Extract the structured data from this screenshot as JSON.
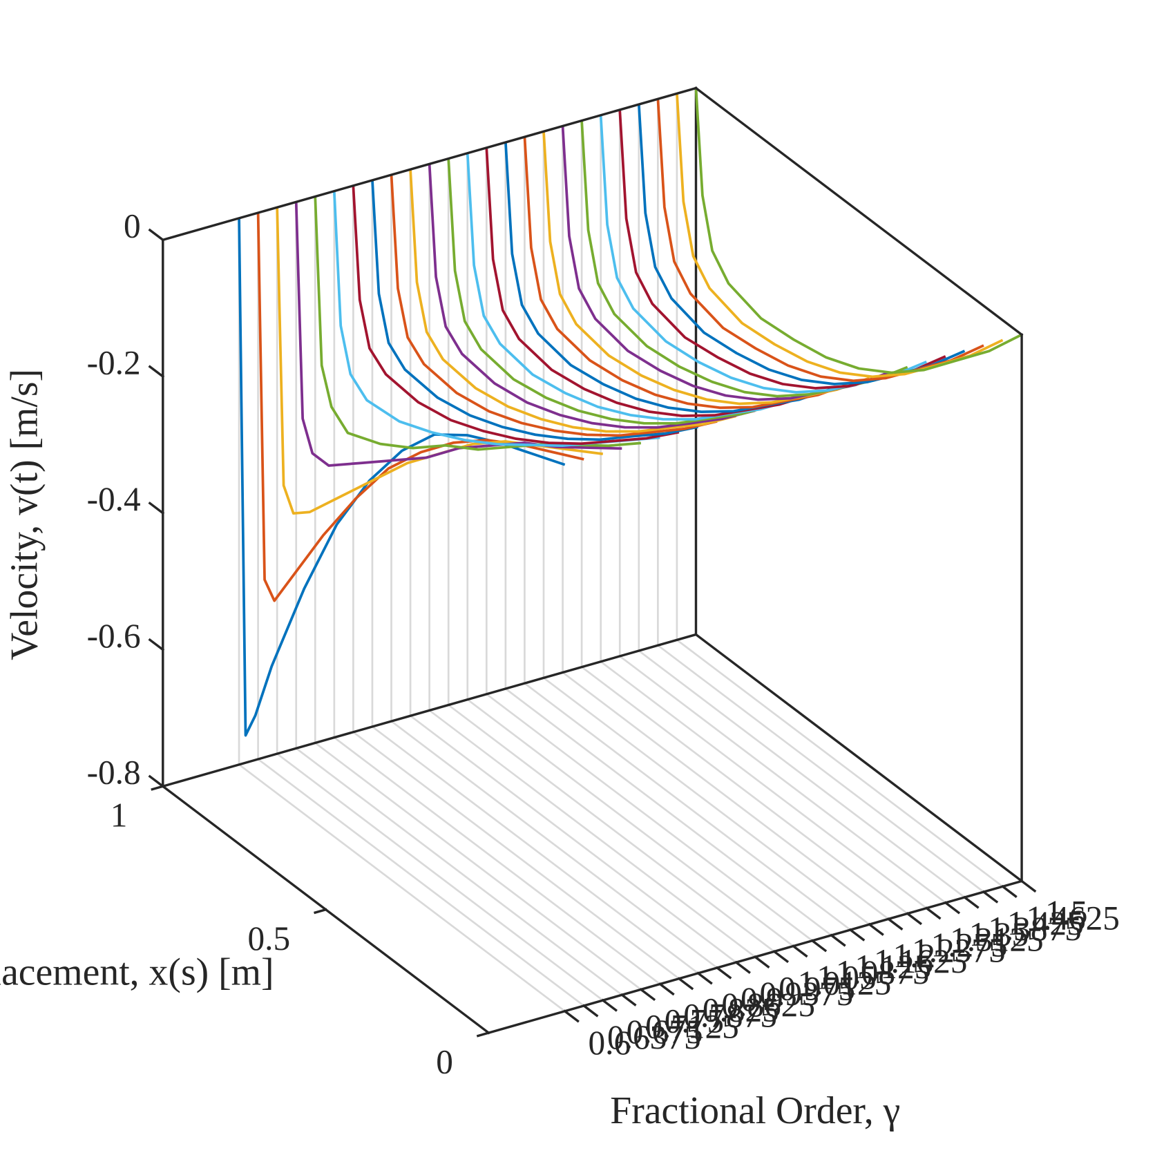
{
  "chart_data": {
    "type": "line3d",
    "xlabel": "Displacement, x(s) [m]",
    "ylabel": "Fractional Order, γ",
    "zlabel": "Velocity, v(t) [m/s]",
    "x": [
      0,
      0.1,
      0.2,
      0.3,
      0.4,
      0.5,
      0.6,
      0.7,
      0.8,
      0.9,
      0.95,
      0.98,
      1
    ],
    "xlim": [
      0,
      1
    ],
    "xticks": [
      0,
      0.5,
      1
    ],
    "ylim": [
      0.45,
      1.5
    ],
    "yticks": [
      0.6,
      0.6375,
      0.675,
      0.7125,
      0.75,
      0.7875,
      0.825,
      0.8625,
      0.9,
      0.9375,
      0.975,
      1.0125,
      1.05,
      1.0875,
      1.125,
      1.1625,
      1.2,
      1.2375,
      1.275,
      1.3125,
      1.35,
      1.3875,
      1.425,
      1.4625,
      1.5
    ],
    "zlim": [
      -0.8,
      0
    ],
    "zticks": [
      -0.8,
      -0.6,
      -0.4,
      -0.2,
      0
    ],
    "projection_color": "#d9d9d9",
    "series": [
      {
        "y": 0.6,
        "color": "#0072bd",
        "values": [
          0,
          -0.02,
          -0.04,
          -0.065,
          -0.1,
          -0.16,
          -0.24,
          -0.34,
          -0.47,
          -0.62,
          -0.71,
          -0.75,
          0
        ]
      },
      {
        "y": 0.6375,
        "color": "#d95319",
        "values": [
          0,
          -0.025,
          -0.05,
          -0.08,
          -0.12,
          -0.17,
          -0.23,
          -0.31,
          -0.4,
          -0.5,
          -0.55,
          -0.53,
          0
        ]
      },
      {
        "y": 0.675,
        "color": "#edb120",
        "values": [
          0,
          -0.03,
          -0.06,
          -0.09,
          -0.13,
          -0.18,
          -0.23,
          -0.29,
          -0.35,
          -0.41,
          -0.43,
          -0.4,
          0
        ]
      },
      {
        "y": 0.7125,
        "color": "#7e2f8e",
        "values": [
          0,
          -0.035,
          -0.07,
          -0.1,
          -0.14,
          -0.18,
          -0.23,
          -0.27,
          -0.31,
          -0.35,
          -0.35,
          -0.31,
          0
        ]
      },
      {
        "y": 0.75,
        "color": "#77ac30",
        "values": [
          0,
          -0.04,
          -0.075,
          -0.11,
          -0.15,
          -0.19,
          -0.22,
          -0.26,
          -0.29,
          -0.31,
          -0.29,
          -0.24,
          0
        ]
      },
      {
        "y": 0.7875,
        "color": "#4dbeee",
        "values": [
          0,
          -0.04,
          -0.08,
          -0.12,
          -0.155,
          -0.19,
          -0.22,
          -0.245,
          -0.265,
          -0.27,
          -0.25,
          -0.19,
          0
        ]
      },
      {
        "y": 0.825,
        "color": "#a2142f",
        "values": [
          0,
          -0.045,
          -0.085,
          -0.125,
          -0.16,
          -0.19,
          -0.215,
          -0.235,
          -0.245,
          -0.24,
          -0.22,
          -0.16,
          0
        ]
      },
      {
        "y": 0.8625,
        "color": "#0072bd",
        "values": [
          0,
          -0.046,
          -0.086,
          -0.127,
          -0.162,
          -0.192,
          -0.217,
          -0.236,
          -0.246,
          -0.241,
          -0.22,
          -0.159,
          0
        ]
      },
      {
        "y": 0.9,
        "color": "#d95319",
        "values": [
          0,
          -0.047,
          -0.088,
          -0.129,
          -0.164,
          -0.194,
          -0.219,
          -0.238,
          -0.247,
          -0.241,
          -0.22,
          -0.159,
          0
        ]
      },
      {
        "y": 0.9375,
        "color": "#edb120",
        "values": [
          0,
          -0.048,
          -0.089,
          -0.131,
          -0.167,
          -0.197,
          -0.221,
          -0.239,
          -0.248,
          -0.242,
          -0.22,
          -0.158,
          0
        ]
      },
      {
        "y": 0.975,
        "color": "#7e2f8e",
        "values": [
          0,
          -0.048,
          -0.091,
          -0.133,
          -0.169,
          -0.199,
          -0.223,
          -0.241,
          -0.249,
          -0.242,
          -0.22,
          -0.158,
          0
        ]
      },
      {
        "y": 1.0125,
        "color": "#77ac30",
        "values": [
          0,
          -0.049,
          -0.092,
          -0.135,
          -0.171,
          -0.201,
          -0.225,
          -0.242,
          -0.251,
          -0.243,
          -0.22,
          -0.157,
          0
        ]
      },
      {
        "y": 1.05,
        "color": "#4dbeee",
        "values": [
          0,
          -0.05,
          -0.093,
          -0.137,
          -0.173,
          -0.203,
          -0.227,
          -0.243,
          -0.252,
          -0.243,
          -0.22,
          -0.157,
          0
        ]
      },
      {
        "y": 1.0875,
        "color": "#a2142f",
        "values": [
          0,
          -0.051,
          -0.095,
          -0.139,
          -0.176,
          -0.206,
          -0.229,
          -0.245,
          -0.253,
          -0.244,
          -0.22,
          -0.156,
          0
        ]
      },
      {
        "y": 1.125,
        "color": "#0072bd",
        "values": [
          0,
          -0.052,
          -0.096,
          -0.141,
          -0.178,
          -0.208,
          -0.231,
          -0.246,
          -0.254,
          -0.244,
          -0.22,
          -0.156,
          0
        ]
      },
      {
        "y": 1.1625,
        "color": "#d95319",
        "values": [
          0,
          -0.053,
          -0.098,
          -0.143,
          -0.18,
          -0.21,
          -0.233,
          -0.248,
          -0.255,
          -0.245,
          -0.22,
          -0.155,
          0
        ]
      },
      {
        "y": 1.2,
        "color": "#edb120",
        "values": [
          0,
          -0.053,
          -0.099,
          -0.144,
          -0.182,
          -0.212,
          -0.234,
          -0.249,
          -0.256,
          -0.246,
          -0.22,
          -0.154,
          0
        ]
      },
      {
        "y": 1.2375,
        "color": "#7e2f8e",
        "values": [
          0,
          -0.054,
          -0.1,
          -0.146,
          -0.184,
          -0.214,
          -0.236,
          -0.25,
          -0.257,
          -0.246,
          -0.22,
          -0.154,
          0
        ]
      },
      {
        "y": 1.275,
        "color": "#77ac30",
        "values": [
          0,
          -0.055,
          -0.102,
          -0.148,
          -0.187,
          -0.217,
          -0.238,
          -0.252,
          -0.258,
          -0.247,
          -0.22,
          -0.153,
          0
        ]
      },
      {
        "y": 1.3125,
        "color": "#4dbeee",
        "values": [
          0,
          -0.056,
          -0.103,
          -0.15,
          -0.189,
          -0.219,
          -0.24,
          -0.253,
          -0.259,
          -0.247,
          -0.22,
          -0.153,
          0
        ]
      },
      {
        "y": 1.35,
        "color": "#a2142f",
        "values": [
          0,
          -0.057,
          -0.104,
          -0.152,
          -0.191,
          -0.221,
          -0.242,
          -0.254,
          -0.261,
          -0.248,
          -0.22,
          -0.152,
          0
        ]
      },
      {
        "y": 1.3875,
        "color": "#0072bd",
        "values": [
          0,
          -0.057,
          -0.106,
          -0.154,
          -0.193,
          -0.223,
          -0.244,
          -0.256,
          -0.262,
          -0.248,
          -0.22,
          -0.152,
          0
        ]
      },
      {
        "y": 1.425,
        "color": "#d95319",
        "values": [
          0,
          -0.058,
          -0.107,
          -0.156,
          -0.196,
          -0.226,
          -0.246,
          -0.257,
          -0.263,
          -0.249,
          -0.22,
          -0.151,
          0
        ]
      },
      {
        "y": 1.4625,
        "color": "#edb120",
        "values": [
          0,
          -0.059,
          -0.109,
          -0.158,
          -0.198,
          -0.228,
          -0.248,
          -0.259,
          -0.264,
          -0.249,
          -0.22,
          -0.151,
          0
        ]
      },
      {
        "y": 1.5,
        "color": "#77ac30",
        "values": [
          0,
          -0.06,
          -0.11,
          -0.16,
          -0.2,
          -0.23,
          -0.25,
          -0.26,
          -0.265,
          -0.25,
          -0.22,
          -0.15,
          0
        ]
      }
    ]
  }
}
